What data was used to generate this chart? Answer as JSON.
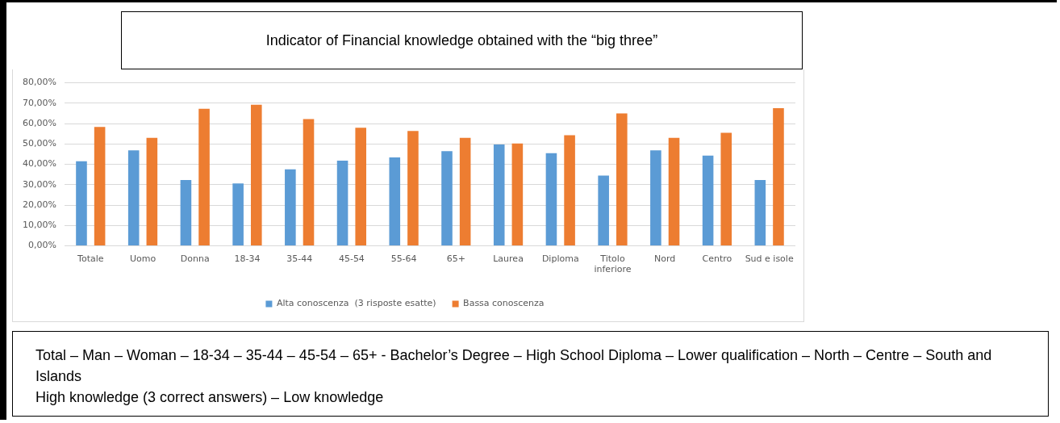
{
  "chart_data": {
    "type": "bar",
    "title": "Indicator of Financial knowledge obtained with the “big three”",
    "categories": [
      "Totale",
      "Uomo",
      "Donna",
      "18-34",
      "35-44",
      "45-54",
      "55-64",
      "65+",
      "Laurea",
      "Diploma",
      "Titolo inferiore",
      "Nord",
      "Centro",
      "Sud e isole"
    ],
    "series": [
      {
        "name": "Alta conoscenza  (3 risposte esatte)",
        "color": "#5b9bd5",
        "values": [
          41.5,
          46.9,
          32.3,
          30.6,
          37.6,
          41.8,
          43.4,
          46.5,
          49.7,
          45.5,
          34.5,
          46.9,
          44.3,
          32.3
        ]
      },
      {
        "name": "Bassa conoscenza",
        "color": "#ed7d31",
        "values": [
          58.4,
          53.0,
          67.3,
          69.2,
          62.2,
          58.0,
          56.4,
          53.0,
          50.2,
          54.3,
          65.0,
          53.0,
          55.5,
          67.6
        ]
      }
    ],
    "ylim": [
      0,
      80
    ],
    "yticks": [
      {
        "value": 0,
        "label": "0,00%"
      },
      {
        "value": 10,
        "label": "10,00%"
      },
      {
        "value": 20,
        "label": "20,00%"
      },
      {
        "value": 30,
        "label": "30,00%"
      },
      {
        "value": 40,
        "label": "40,00%"
      },
      {
        "value": 50,
        "label": "50,00%"
      },
      {
        "value": 60,
        "label": "60,00%"
      },
      {
        "value": 70,
        "label": "70,00%"
      },
      {
        "value": 80,
        "label": "80,00%"
      }
    ],
    "grid": "y",
    "legend": "bottom",
    "annotations": [
      "Total – Man – Woman – 18-34 – 35-44 – 45-54 – 65+ - Bachelor’s Degree – High School Diploma – Lower qualification – North – Centre – South and Islands",
      "High knowledge (3 correct answers) – Low knowledge"
    ]
  }
}
